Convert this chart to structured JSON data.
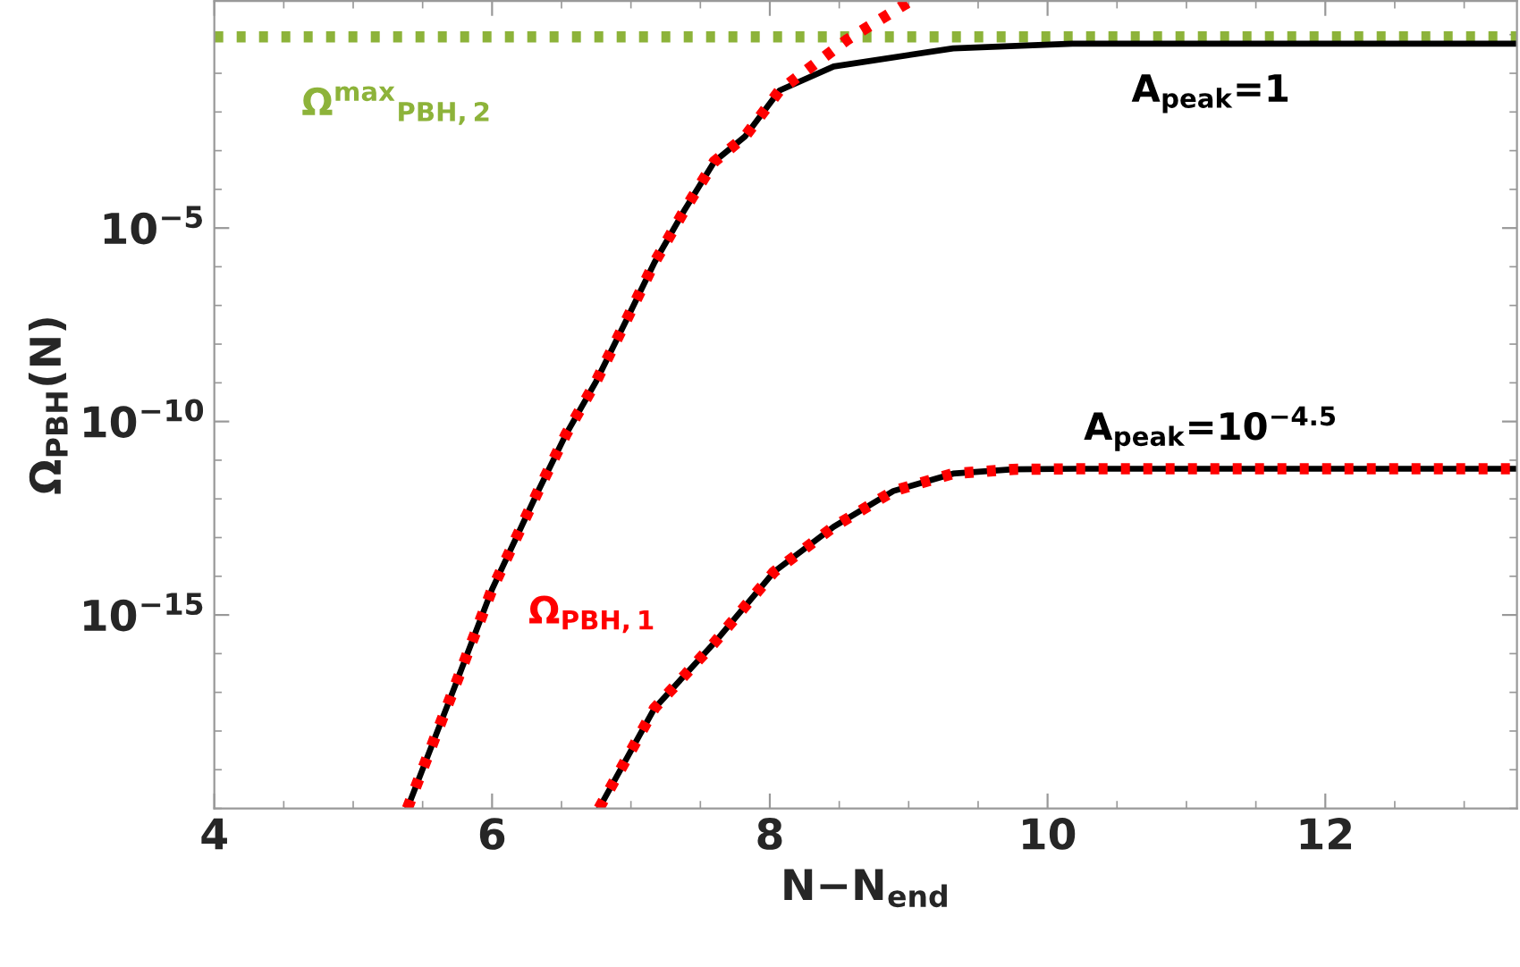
{
  "chart_data": {
    "type": "line",
    "xlabel": "N−N$_{end}$",
    "ylabel": "Ω$_{PBH}$(N)",
    "log": "y",
    "xlim": [
      4,
      13.38
    ],
    "ylim": [
      1e-20,
      7.4
    ],
    "xticks": [
      4,
      6,
      8,
      10,
      12
    ],
    "yticks": [
      {
        "value": 1e-15,
        "label": "10$^{−15}$"
      },
      {
        "value": 1e-10,
        "label": "10$^{−10}$"
      },
      {
        "value": 1e-05,
        "label": "10$^{−5}$"
      }
    ],
    "grid": false,
    "series": [
      {
        "color": "#000000",
        "line_style": "solid",
        "x": [
          5.39,
          5.72,
          6.0,
          6.32,
          6.53,
          6.75,
          6.96,
          7.17,
          7.39,
          7.6,
          7.82,
          8.07,
          8.46,
          9.32,
          10.18,
          13.38
        ],
        "values": [
          1e-20,
          1.1e-17,
          4.6e-15,
          1.3e-12,
          4.5e-11,
          1.1e-09,
          3.7e-08,
          1.3e-06,
          3.1e-05,
          0.00052,
          0.0023,
          0.036,
          0.15,
          0.44,
          0.58,
          0.58
        ]
      },
      {
        "color": "#ff0000",
        "line_style": "dotted",
        "x": [
          5.39,
          5.72,
          6.0,
          6.32,
          6.53,
          6.75,
          6.96,
          7.17,
          7.39,
          7.6,
          7.82,
          8.07,
          8.55,
          9.0
        ],
        "values": [
          1e-20,
          1.1e-17,
          4.6e-15,
          1.3e-12,
          4.5e-11,
          1.1e-09,
          3.7e-08,
          1.3e-06,
          3.1e-05,
          0.00052,
          0.0023,
          0.036,
          0.71,
          7.0
        ]
      },
      {
        "color": "#000000",
        "line_style": "solid",
        "x": [
          6.77,
          7.17,
          7.6,
          8.03,
          8.46,
          8.89,
          9.32,
          9.75,
          10.2,
          13.38
        ],
        "values": [
          1e-20,
          3.9e-18,
          1.9e-16,
          1.3e-14,
          1.9e-13,
          1.6e-12,
          4.5e-12,
          5.8e-12,
          6e-12,
          6e-12
        ]
      },
      {
        "color": "#ff0000",
        "line_style": "dotted",
        "x": [
          6.77,
          7.17,
          7.6,
          8.03,
          8.46,
          8.89,
          9.32,
          9.75,
          10.2,
          13.38
        ],
        "values": [
          1e-20,
          3.9e-18,
          1.9e-16,
          1.3e-14,
          1.9e-13,
          1.6e-12,
          4.5e-12,
          5.8e-12,
          6e-12,
          6e-12
        ]
      }
    ],
    "ref_lines": [
      {
        "axis": "y",
        "value": 0.87,
        "label": "Ω$^{max}$$_{PBH,2}$",
        "color": "#8db33a",
        "line_style": "dotted"
      }
    ],
    "annotations": [
      "A$_{peak}$=1",
      "A$_{peak}$=10$^{−4.5}$",
      "Ω$_{PBH,1}$"
    ]
  }
}
